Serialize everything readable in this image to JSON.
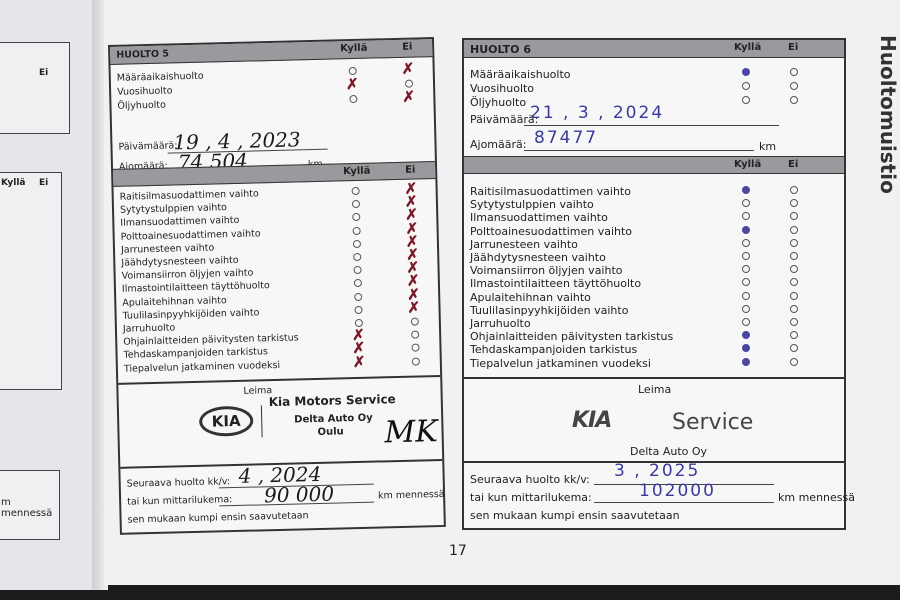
{
  "side_title": "Huoltomuistio",
  "page_number": "17",
  "col_yes": "Kyllä",
  "col_no": "Ei",
  "left_page": {
    "col_yes": "Kyllä",
    "col_no": "Ei",
    "text": "m mennessä"
  },
  "service_types": [
    "Määräaikaishuolto",
    "Vuosihuolto",
    "Öljyhuolto"
  ],
  "date_label": "Päivämäärä:",
  "mileage_label": "Ajomäärä:",
  "km": "km",
  "items": [
    "Raitisilmasuodattimen vaihto",
    "Sytytystulppien vaihto",
    "Ilmansuodattimen vaihto",
    "Polttoainesuodattimen vaihto",
    "Jarrunesteen vaihto",
    "Jäähdytysnesteen vaihto",
    "Voimansiirron öljyjen vaihto",
    "Ilmastointilaitteen täyttöhuolto",
    "Apulaitehihnan vaihto",
    "Tuulilasinpyyhkijöiden vaihto",
    "Jarruhuolto",
    "Ohjainlaitteiden päivitysten tarkistus",
    "Tehdaskampanjoiden tarkistus",
    "Tiepalvelun jatkaminen vuodeksi"
  ],
  "stamp_label": "Leima",
  "next_service_label": "Seuraava huolto kk/v:",
  "odometer_label": "tai kun mittarilukema:",
  "km_by": "km mennessä",
  "whichever": "sen mukaan kumpi ensin saavutetaan",
  "huolto5": {
    "title": "HUOLTO 5",
    "service_checks": [
      "no",
      "yes",
      "no"
    ],
    "date": "19 , 4 , 2023",
    "mileage": "74 504",
    "item_checks": [
      "no",
      "no",
      "no",
      "no",
      "no",
      "no",
      "no",
      "no",
      "no",
      "no",
      "none",
      "yes",
      "yes",
      "yes"
    ],
    "stamp_logo": "KIA",
    "stamp_line1": "Kia Motors Service",
    "stamp_line2": "Delta Auto Oy",
    "stamp_line3": "Oulu",
    "signature": "MK",
    "next_service": "4 , 2024",
    "next_mileage": "90 000",
    "mark_color": "#7a1a2a"
  },
  "huolto6": {
    "title": "HUOLTO 6",
    "service_checks": [
      "yes",
      "none",
      "none"
    ],
    "date": "21 , 3 , 2024",
    "mileage": "87477",
    "item_checks": [
      "yes",
      "none",
      "none",
      "yes",
      "none",
      "none",
      "none",
      "none",
      "none",
      "none",
      "none",
      "yes",
      "yes",
      "yes"
    ],
    "stamp_logo": "KIA",
    "stamp_line1": "Service",
    "stamp_line2": "Delta Auto Oy",
    "next_service": "3 , 2025",
    "next_mileage": "102000",
    "mark_color": "#4a47a0"
  }
}
